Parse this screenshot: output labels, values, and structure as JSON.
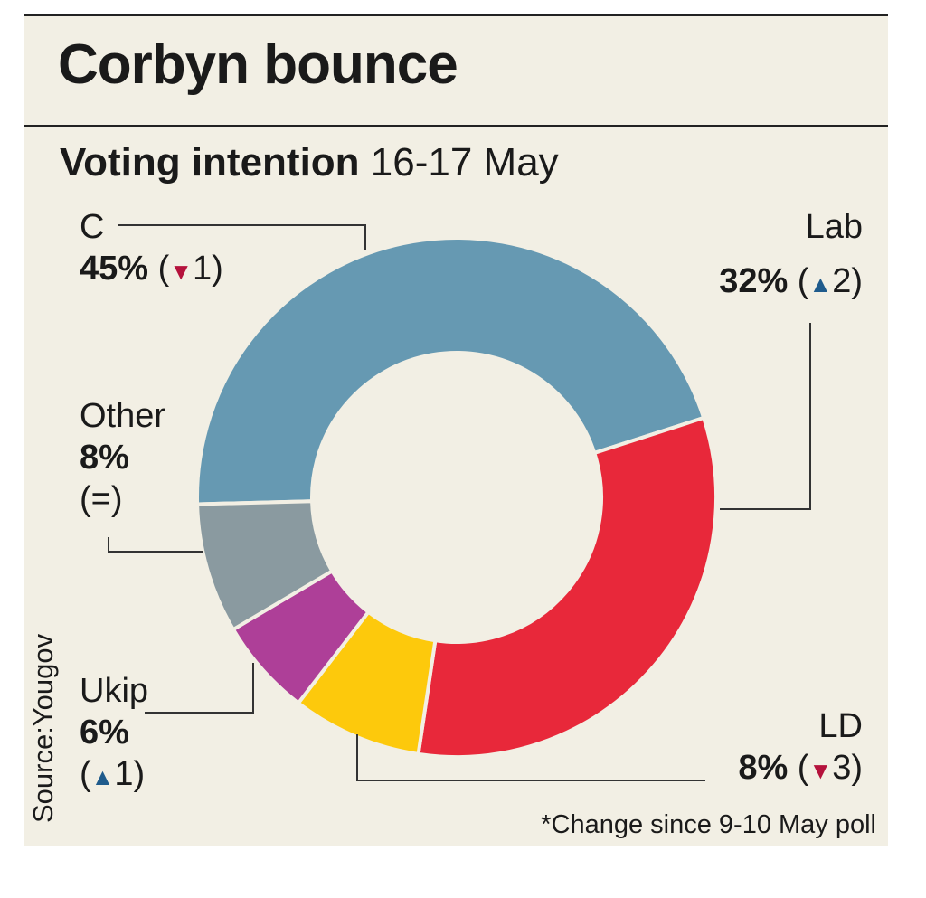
{
  "chart_data": {
    "type": "pie",
    "title": "Corbyn bounce",
    "subtitle_bold": "Voting intention",
    "subtitle_rest": "16-17 May",
    "slices": [
      {
        "label": "C",
        "value": 45,
        "change": "1",
        "direction": "down",
        "color": "#6699b2"
      },
      {
        "label": "Lab",
        "value": 32,
        "change": "2",
        "direction": "up",
        "color": "#e8283a"
      },
      {
        "label": "LD",
        "value": 8,
        "change": "3",
        "direction": "down",
        "color": "#fdc90c"
      },
      {
        "label": "Ukip",
        "value": 6,
        "change": "1",
        "direction": "up",
        "color": "#ae3f98"
      },
      {
        "label": "Other",
        "value": 8,
        "change": "=",
        "direction": "none",
        "color": "#8a9aa0"
      }
    ],
    "labels_text": {
      "c_name": "C",
      "c_pct": "45%",
      "lab_name": "Lab",
      "lab_pct": "32%",
      "ld_name": "LD",
      "ld_pct": "8%",
      "ukip_name": "Ukip",
      "ukip_pct": "6%",
      "other_name": "Other",
      "other_pct": "8%",
      "other_change": "(=)"
    },
    "footnote": "*Change since 9-10 May poll",
    "source": "Source:Yougov"
  }
}
